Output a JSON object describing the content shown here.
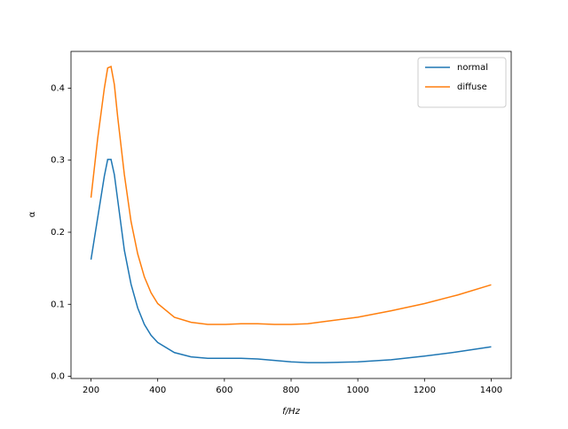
{
  "chart_data": {
    "type": "line",
    "xlabel": "f/Hz",
    "ylabel": "α",
    "x": [
      200,
      220,
      240,
      250,
      260,
      270,
      280,
      300,
      320,
      340,
      360,
      380,
      400,
      450,
      500,
      550,
      600,
      650,
      700,
      750,
      800,
      850,
      900,
      1000,
      1100,
      1200,
      1300,
      1400
    ],
    "series": [
      {
        "name": "normal",
        "color": "#1f77b4",
        "values": [
          0.162,
          0.22,
          0.278,
          0.301,
          0.301,
          0.28,
          0.245,
          0.175,
          0.128,
          0.095,
          0.072,
          0.057,
          0.047,
          0.033,
          0.027,
          0.025,
          0.025,
          0.025,
          0.024,
          0.022,
          0.02,
          0.019,
          0.019,
          0.02,
          0.023,
          0.028,
          0.034,
          0.041
        ]
      },
      {
        "name": "diffuse",
        "color": "#ff7f0e",
        "values": [
          0.248,
          0.33,
          0.4,
          0.428,
          0.43,
          0.405,
          0.36,
          0.28,
          0.215,
          0.17,
          0.138,
          0.116,
          0.101,
          0.082,
          0.075,
          0.072,
          0.072,
          0.073,
          0.073,
          0.072,
          0.072,
          0.073,
          0.076,
          0.082,
          0.091,
          0.101,
          0.113,
          0.127
        ]
      }
    ],
    "xlim": [
      140,
      1460
    ],
    "ylim": [
      -0.003,
      0.451
    ],
    "xticks": [
      200,
      400,
      600,
      800,
      1000,
      1200,
      1400
    ],
    "yticks": [
      {
        "value": 0,
        "label": "0.0"
      },
      0.1,
      0.2,
      0.3,
      0.4
    ],
    "legend": "upper right"
  }
}
